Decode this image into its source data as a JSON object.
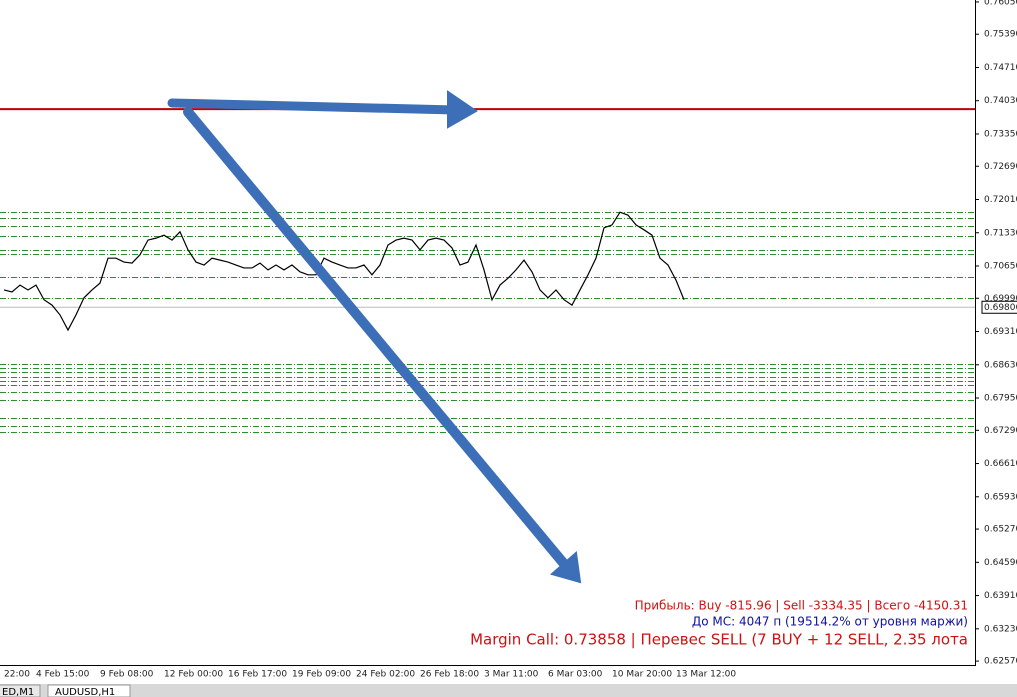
{
  "chart_data": {
    "type": "line",
    "color": "#000000",
    "categories": [
      "22:00",
      null,
      null,
      null,
      "4 Feb 15:00",
      null,
      null,
      null,
      null,
      null,
      null,
      null,
      "9 Feb 08:00",
      null,
      null,
      null,
      null,
      null,
      null,
      null,
      "12 Feb 00:00",
      null,
      null,
      null,
      null,
      null,
      null,
      null,
      "16 Feb 17:00",
      null,
      null,
      null,
      null,
      null,
      null,
      null,
      "19 Feb 09:00",
      null,
      null,
      null,
      null,
      null,
      null,
      null,
      "24 Feb 02:00",
      null,
      null,
      null,
      null,
      null,
      null,
      null,
      "26 Feb 18:00",
      null,
      null,
      null,
      null,
      null,
      null,
      null,
      "3 Mar 11:00",
      null,
      null,
      null,
      null,
      null,
      null,
      null,
      "6 Mar 03:00",
      null,
      null,
      null,
      null,
      null,
      null,
      null,
      "10 Mar 20:00",
      null,
      null,
      null,
      null,
      null,
      null,
      null,
      "13 Mar 12:00",
      null
    ],
    "values": [
      0.7016,
      0.7012,
      0.7026,
      0.7016,
      0.7026,
      0.6996,
      0.6985,
      0.6965,
      0.6934,
      0.6965,
      0.7,
      0.7016,
      0.703,
      0.7081,
      0.7081,
      0.7073,
      0.7071,
      0.7088,
      0.7118,
      0.7122,
      0.7128,
      0.7118,
      0.7135,
      0.7098,
      0.7073,
      0.7067,
      0.7081,
      0.7077,
      0.7073,
      0.7067,
      0.7061,
      0.7061,
      0.7071,
      0.7057,
      0.7067,
      0.7057,
      0.7067,
      0.7053,
      0.7047,
      0.7047,
      0.7081,
      0.7073,
      0.7067,
      0.7061,
      0.7061,
      0.7067,
      0.7047,
      0.7067,
      0.7108,
      0.7118,
      0.7122,
      0.7118,
      0.7098,
      0.7118,
      0.7122,
      0.7118,
      0.7102,
      0.7067,
      0.7073,
      0.7108,
      0.7057,
      0.6996,
      0.7026,
      0.704,
      0.7057,
      0.7077,
      0.7053,
      0.7016,
      0.7,
      0.7016,
      0.6996,
      0.6985,
      0.7016,
      0.7047,
      0.7081,
      0.7143,
      0.7149,
      0.7175,
      0.7169,
      0.7149,
      0.7139,
      0.7128,
      0.7081,
      0.7067,
      0.7036,
      0.6996
    ],
    "ylim": [
      0.6249,
      0.7609
    ],
    "yticks": [
      {
        "value": 0.7605,
        "label": "0.76050"
      },
      {
        "value": 0.7539,
        "label": "0.75390"
      },
      {
        "value": 0.7471,
        "label": "0.74710"
      },
      {
        "value": 0.7403,
        "label": "0.74030"
      },
      {
        "value": 0.7335,
        "label": "0.73350"
      },
      {
        "value": 0.7269,
        "label": "0.72690"
      },
      {
        "value": 0.7201,
        "label": "0.72010"
      },
      {
        "value": 0.7133,
        "label": "0.71330"
      },
      {
        "value": 0.7065,
        "label": "0.70650"
      },
      {
        "value": 0.6999,
        "label": "0.69990"
      },
      {
        "value": 0.6931,
        "label": "0.69310"
      },
      {
        "value": 0.6863,
        "label": "0.68630"
      },
      {
        "value": 0.6795,
        "label": "0.67950"
      },
      {
        "value": 0.6729,
        "label": "0.67290"
      },
      {
        "value": 0.6661,
        "label": "0.66610"
      },
      {
        "value": 0.6593,
        "label": "0.65930"
      },
      {
        "value": 0.6527,
        "label": "0.65270"
      },
      {
        "value": 0.6459,
        "label": "0.64590"
      },
      {
        "value": 0.6391,
        "label": "0.63910"
      },
      {
        "value": 0.6323,
        "label": "0.63230"
      },
      {
        "value": 0.6257,
        "label": "0.62570"
      }
    ],
    "last_price": 0.69806,
    "margin_call_line": {
      "value": 0.73858,
      "color": "#c00000"
    },
    "levels": {
      "color": "#2e8b2e",
      "values": [
        0.7175,
        0.7163,
        0.7147,
        0.7126,
        0.7098,
        0.7089,
        0.7042,
        0.6999,
        0.6865,
        0.6856,
        0.6848,
        0.6838,
        0.683,
        0.6822,
        0.6807,
        0.6791,
        0.6754,
        0.6738,
        0.6725
      ]
    },
    "annotations": [
      {
        "text": "Прибыль: Buy -815.96 | Sell -3334.35 | Всего -4150.31",
        "color": "#d01010"
      },
      {
        "text": "До МС: 4047 п (19514.2% от уровня маржи)",
        "color": "#1010a0"
      },
      {
        "text": "Margin Call: 0.73858 | Перевес SELL (7 BUY + 12 SELL, 2.35 лота",
        "color": "#d01010"
      }
    ]
  },
  "tabs": [
    "ED,M1",
    "AUDUSD,H1"
  ]
}
